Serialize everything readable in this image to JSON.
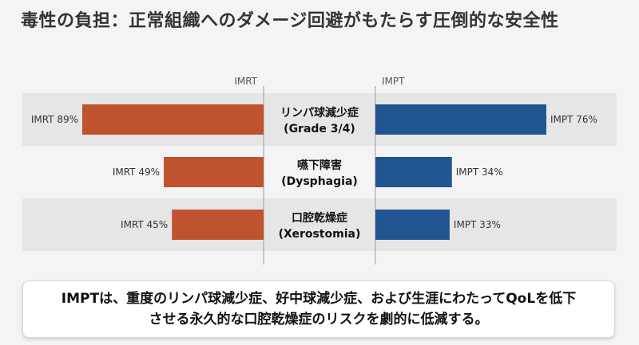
{
  "title": "毒性の負担：正常組織へのダメージ回避がもたらす圧倒的な安全性",
  "chart_data": {
    "type": "bar",
    "orientation": "horizontal-butterfly",
    "column_headers": [
      "IMRT",
      "IMPT"
    ],
    "categories": [
      {
        "ja": "リンパ球減少症",
        "en": "(Grade 3/4)"
      },
      {
        "ja": "嚥下障害",
        "en": "(Dysphagia)"
      },
      {
        "ja": "口腔乾燥症",
        "en": "(Xerostomia)"
      }
    ],
    "series": [
      {
        "name": "IMRT",
        "values": [
          89,
          49,
          45
        ],
        "labels": [
          "IMRT 89%",
          "IMRT 49%",
          "IMRT 45%"
        ],
        "color": "#c0532f"
      },
      {
        "name": "IMPT",
        "values": [
          76,
          34,
          33
        ],
        "labels": [
          "IMPT 76%",
          "IMPT 34%",
          "IMPT 33%"
        ],
        "color": "#215591"
      }
    ],
    "unit": "%"
  },
  "callout": "IMPTは、重度のリンパ球減少症、好中球減少症、および生涯にわたってQoLを低下させる永久的な口腔乾燥症のリスクを劇的に低減する。"
}
